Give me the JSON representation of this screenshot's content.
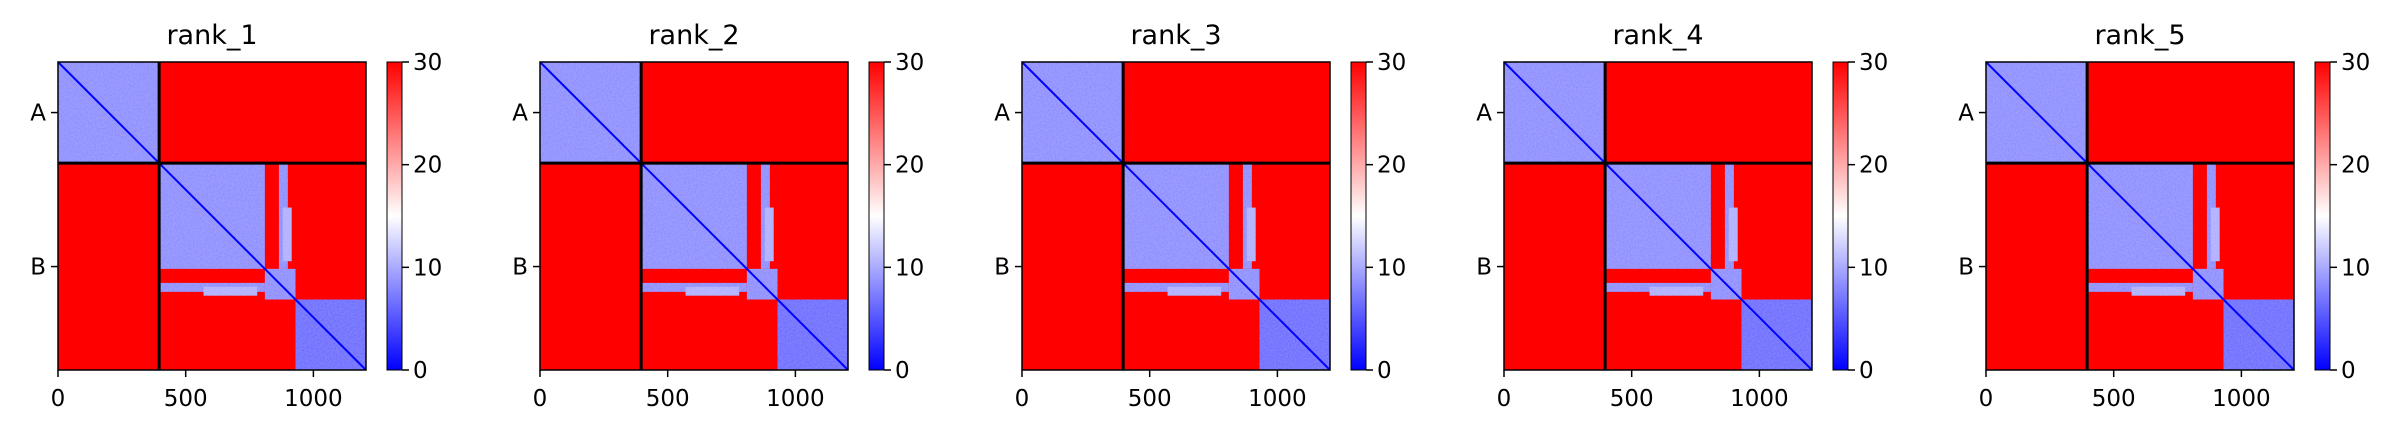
{
  "figure": {
    "colors": {
      "low": "#0000ff",
      "mid": "#ffffff",
      "high": "#ff0000",
      "divider": "#000000"
    }
  },
  "chart_data": [
    {
      "type": "heatmap",
      "title": "rank_1",
      "chains": [
        {
          "name": "A",
          "start": 0,
          "end": 396
        },
        {
          "name": "B",
          "start": 396,
          "end": 1206
        }
      ],
      "chain_boundary": 396,
      "xlim": [
        0,
        1206
      ],
      "xticks": [
        0,
        500,
        1000
      ],
      "ytick_labels": [
        "A",
        "B"
      ],
      "colorbar": {
        "min": 0,
        "max": 30,
        "ticks": [
          0,
          10,
          20,
          30
        ],
        "cmap": "bwr"
      },
      "low_error_blocks": [
        {
          "x": [
            0,
            396
          ],
          "y": [
            0,
            396
          ],
          "value": 8
        },
        {
          "x": [
            396,
            810
          ],
          "y": [
            396,
            810
          ],
          "value": 8
        },
        {
          "x": [
            810,
            930
          ],
          "y": [
            810,
            930
          ],
          "value": 8
        },
        {
          "x": [
            930,
            1206
          ],
          "y": [
            930,
            1206
          ],
          "value": 6
        },
        {
          "x": [
            396,
            810
          ],
          "y": [
            865,
            900
          ],
          "value": 8
        },
        {
          "x": [
            880,
            915
          ],
          "y": [
            570,
            780
          ],
          "value": 10
        }
      ],
      "background_value": 30
    },
    {
      "type": "heatmap",
      "title": "rank_2",
      "chains": [
        {
          "name": "A",
          "start": 0,
          "end": 396
        },
        {
          "name": "B",
          "start": 396,
          "end": 1206
        }
      ],
      "chain_boundary": 396,
      "xlim": [
        0,
        1206
      ],
      "xticks": [
        0,
        500,
        1000
      ],
      "ytick_labels": [
        "A",
        "B"
      ],
      "colorbar": {
        "min": 0,
        "max": 30,
        "ticks": [
          0,
          10,
          20,
          30
        ],
        "cmap": "bwr"
      },
      "low_error_blocks": [
        {
          "x": [
            0,
            396
          ],
          "y": [
            0,
            396
          ],
          "value": 8
        },
        {
          "x": [
            396,
            810
          ],
          "y": [
            396,
            810
          ],
          "value": 8
        },
        {
          "x": [
            810,
            930
          ],
          "y": [
            810,
            930
          ],
          "value": 8
        },
        {
          "x": [
            930,
            1206
          ],
          "y": [
            930,
            1206
          ],
          "value": 6
        },
        {
          "x": [
            396,
            810
          ],
          "y": [
            865,
            900
          ],
          "value": 8
        },
        {
          "x": [
            880,
            915
          ],
          "y": [
            570,
            780
          ],
          "value": 10
        }
      ],
      "background_value": 30
    },
    {
      "type": "heatmap",
      "title": "rank_3",
      "chains": [
        {
          "name": "A",
          "start": 0,
          "end": 396
        },
        {
          "name": "B",
          "start": 396,
          "end": 1206
        }
      ],
      "chain_boundary": 396,
      "xlim": [
        0,
        1206
      ],
      "xticks": [
        0,
        500,
        1000
      ],
      "ytick_labels": [
        "A",
        "B"
      ],
      "colorbar": {
        "min": 0,
        "max": 30,
        "ticks": [
          0,
          10,
          20,
          30
        ],
        "cmap": "bwr"
      },
      "low_error_blocks": [
        {
          "x": [
            0,
            396
          ],
          "y": [
            0,
            396
          ],
          "value": 8
        },
        {
          "x": [
            396,
            810
          ],
          "y": [
            396,
            810
          ],
          "value": 8
        },
        {
          "x": [
            810,
            930
          ],
          "y": [
            810,
            930
          ],
          "value": 8
        },
        {
          "x": [
            930,
            1206
          ],
          "y": [
            930,
            1206
          ],
          "value": 6
        },
        {
          "x": [
            396,
            810
          ],
          "y": [
            865,
            900
          ],
          "value": 8
        },
        {
          "x": [
            880,
            915
          ],
          "y": [
            570,
            780
          ],
          "value": 10
        }
      ],
      "background_value": 30
    },
    {
      "type": "heatmap",
      "title": "rank_4",
      "chains": [
        {
          "name": "A",
          "start": 0,
          "end": 396
        },
        {
          "name": "B",
          "start": 396,
          "end": 1206
        }
      ],
      "chain_boundary": 396,
      "xlim": [
        0,
        1206
      ],
      "xticks": [
        0,
        500,
        1000
      ],
      "ytick_labels": [
        "A",
        "B"
      ],
      "colorbar": {
        "min": 0,
        "max": 30,
        "ticks": [
          0,
          10,
          20,
          30
        ],
        "cmap": "bwr"
      },
      "low_error_blocks": [
        {
          "x": [
            0,
            396
          ],
          "y": [
            0,
            396
          ],
          "value": 8
        },
        {
          "x": [
            396,
            810
          ],
          "y": [
            396,
            810
          ],
          "value": 8
        },
        {
          "x": [
            810,
            930
          ],
          "y": [
            810,
            930
          ],
          "value": 8
        },
        {
          "x": [
            930,
            1206
          ],
          "y": [
            930,
            1206
          ],
          "value": 6
        },
        {
          "x": [
            396,
            810
          ],
          "y": [
            865,
            900
          ],
          "value": 8
        },
        {
          "x": [
            880,
            915
          ],
          "y": [
            570,
            780
          ],
          "value": 10
        }
      ],
      "background_value": 30
    },
    {
      "type": "heatmap",
      "title": "rank_5",
      "chains": [
        {
          "name": "A",
          "start": 0,
          "end": 396
        },
        {
          "name": "B",
          "start": 396,
          "end": 1206
        }
      ],
      "chain_boundary": 396,
      "xlim": [
        0,
        1206
      ],
      "xticks": [
        0,
        500,
        1000
      ],
      "ytick_labels": [
        "A",
        "B"
      ],
      "colorbar": {
        "min": 0,
        "max": 30,
        "ticks": [
          0,
          10,
          20,
          30
        ],
        "cmap": "bwr"
      },
      "low_error_blocks": [
        {
          "x": [
            0,
            396
          ],
          "y": [
            0,
            396
          ],
          "value": 8
        },
        {
          "x": [
            396,
            810
          ],
          "y": [
            396,
            810
          ],
          "value": 8
        },
        {
          "x": [
            810,
            930
          ],
          "y": [
            810,
            930
          ],
          "value": 8
        },
        {
          "x": [
            930,
            1206
          ],
          "y": [
            930,
            1206
          ],
          "value": 6
        },
        {
          "x": [
            396,
            810
          ],
          "y": [
            865,
            900
          ],
          "value": 8
        },
        {
          "x": [
            880,
            915
          ],
          "y": [
            570,
            780
          ],
          "value": 10
        }
      ],
      "background_value": 30
    }
  ]
}
